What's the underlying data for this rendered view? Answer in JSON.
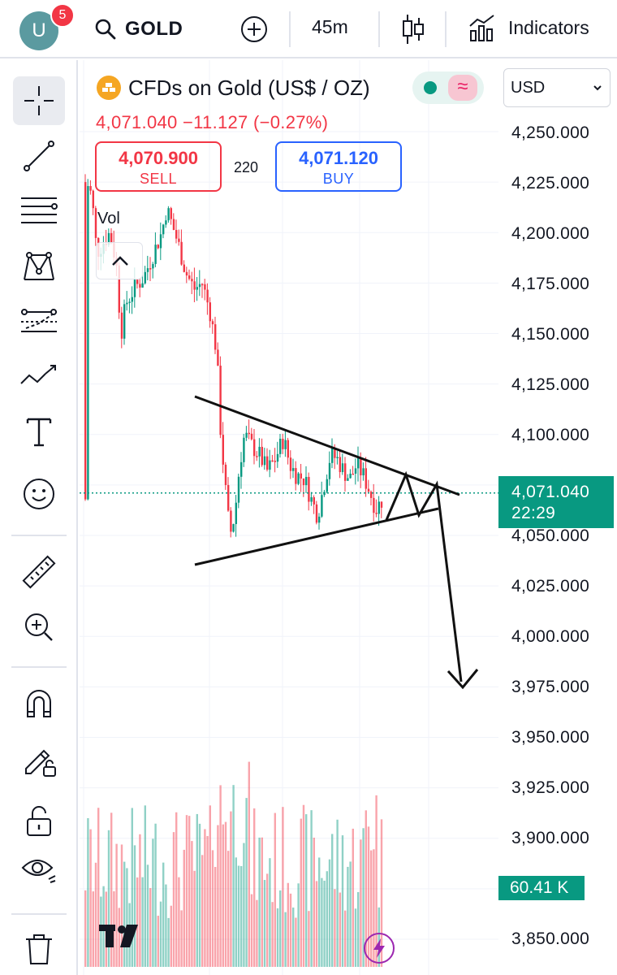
{
  "header": {
    "avatar_letter": "U",
    "notification_count": "5",
    "symbol": "GOLD",
    "interval": "45m",
    "indicators_label": "Indicators"
  },
  "legend": {
    "title": "CFDs on Gold (US$ / OZ)",
    "ohlc_line": "4,071.040  −11.127 (−0.27%)",
    "sell_price": "4,070.900",
    "sell_label": "SELL",
    "spread": "220",
    "buy_price": "4,071.120",
    "buy_label": "BUY",
    "volume_label": "Vol"
  },
  "currency": "USD",
  "price_axis": {
    "labels": [
      "4,250.000",
      "4,225.000",
      "4,200.000",
      "4,175.000",
      "4,150.000",
      "4,125.000",
      "4,100.000",
      "4,050.000",
      "4,025.000",
      "4,000.000",
      "3,975.000",
      "3,950.000",
      "3,925.000",
      "3,900.000",
      "3,850.000"
    ],
    "current_price": "4,071.040",
    "countdown": "22:29",
    "volume_value": "60.41 K"
  },
  "tools": [
    "crosshair-icon",
    "trend-line-icon",
    "fib-retracement-icon",
    "pattern-icon",
    "prediction-icon",
    "forecast-icon",
    "text-icon",
    "emoji-icon",
    "ruler-icon",
    "zoom-in-icon",
    "magnet-icon",
    "lock-drawing-icon",
    "unlock-icon",
    "eye-icon",
    "trash-icon"
  ],
  "colors": {
    "up": "#089981",
    "down": "#f23645",
    "accent": "#2962ff",
    "price_line": "#089981"
  }
}
